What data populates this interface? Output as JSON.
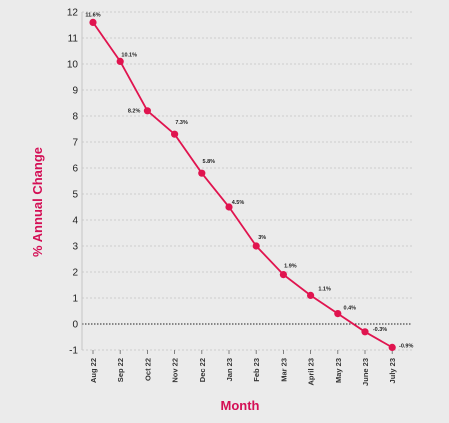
{
  "chart_data": {
    "type": "line",
    "xlabel": "Month",
    "ylabel": "% Annual Change",
    "ylim": [
      -1,
      12
    ],
    "yticks": [
      "-1",
      "0",
      "1",
      "2",
      "3",
      "4",
      "5",
      "6",
      "7",
      "8",
      "9",
      "10",
      "11",
      "12"
    ],
    "grid": true,
    "categories": [
      "Aug 22",
      "Sep 22",
      "Oct 22",
      "Nov 22",
      "Dec 22",
      "Jan 23",
      "Feb 23",
      "Mar 23",
      "April 23",
      "May 23",
      "June 23",
      "July 23"
    ],
    "series": [
      {
        "values": [
          11.6,
          10.1,
          8.2,
          7.3,
          5.8,
          4.5,
          3.0,
          1.9,
          1.1,
          0.4,
          -0.3,
          -0.9
        ],
        "data_labels": [
          "11.6%",
          "10.1%",
          "8.2%",
          "7.3%",
          "5.8%",
          "4.5%",
          "3%",
          "1.9%",
          "1.1%",
          "0.4%",
          "-0.3%",
          "-0.9%"
        ],
        "color": "#e0144f"
      }
    ]
  }
}
